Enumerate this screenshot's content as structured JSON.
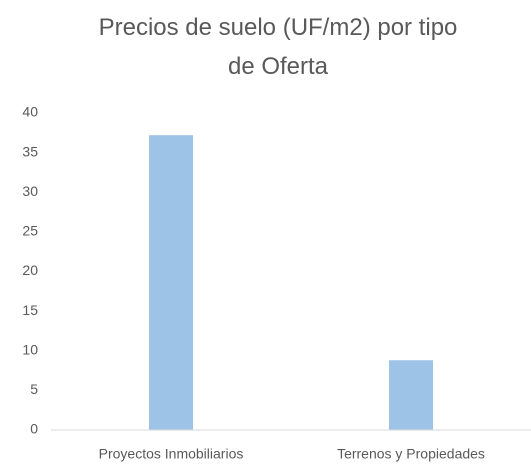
{
  "chart_data": {
    "type": "bar",
    "title": "Precios de suelo (UF/m2) por tipo de Oferta",
    "categories": [
      "Proyectos Inmobiliarios",
      "Terrenos y Propiedades"
    ],
    "values": [
      37.2,
      8.8
    ],
    "color": "#9dc3e6",
    "ylim": [
      0,
      40
    ],
    "yticks": [
      0,
      5,
      10,
      15,
      20,
      25,
      30,
      35,
      40
    ],
    "grid": false
  }
}
